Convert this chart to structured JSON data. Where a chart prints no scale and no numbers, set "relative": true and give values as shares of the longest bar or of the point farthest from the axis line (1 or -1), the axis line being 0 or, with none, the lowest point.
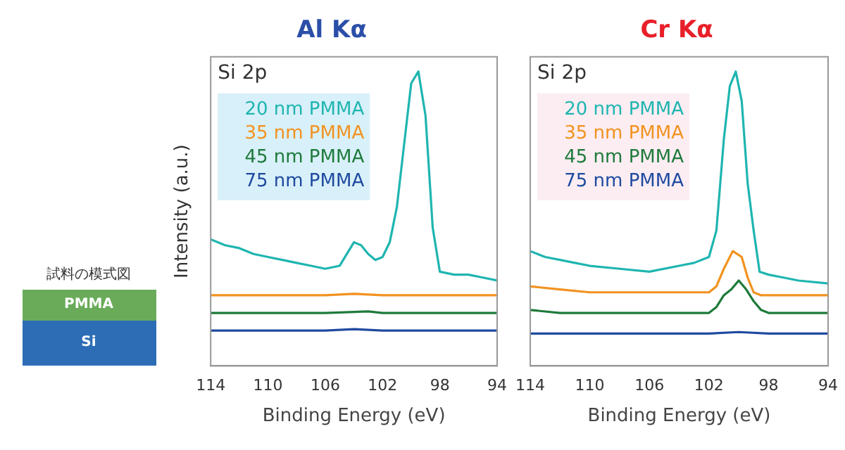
{
  "chart_data": [
    {
      "type": "other",
      "title": "試料の模式図",
      "annotations": [
        "PMMA",
        "Si"
      ]
    },
    {
      "type": "line",
      "title": "Al Kα",
      "xlabel": "Binding Energy (eV)",
      "ylabel": "Intensity (a.u.)",
      "relative": true,
      "xlim": [
        114,
        94
      ],
      "xticks": [
        114,
        110,
        106,
        102,
        98,
        94
      ],
      "legend": "top left",
      "grid": false,
      "marker": "none",
      "annotations": [
        "Si 2p"
      ],
      "series": [
        {
          "name": "20 nm PMMA",
          "color": "#1fb5b0",
          "x": [
            114,
            113,
            112,
            111,
            110,
            109,
            108,
            107,
            106,
            105,
            104.5,
            104,
            103.5,
            103,
            102.5,
            102,
            101.5,
            101,
            100.5,
            100,
            99.5,
            99,
            98.5,
            98,
            97,
            96,
            95,
            94
          ],
          "values": [
            0.43,
            0.41,
            0.4,
            0.38,
            0.37,
            0.36,
            0.35,
            0.34,
            0.33,
            0.34,
            0.38,
            0.42,
            0.41,
            0.38,
            0.36,
            0.37,
            0.42,
            0.54,
            0.75,
            0.96,
            1,
            0.85,
            0.47,
            0.32,
            0.31,
            0.31,
            0.3,
            0.29
          ]
        },
        {
          "name": "35 nm PMMA",
          "color": "#f2921f",
          "x": [
            114,
            110,
            106,
            104,
            102,
            98,
            94
          ],
          "values": [
            0.24,
            0.24,
            0.24,
            0.245,
            0.24,
            0.24,
            0.24
          ]
        },
        {
          "name": "45 nm PMMA",
          "color": "#1e7a3a",
          "x": [
            114,
            110,
            106,
            103,
            102,
            98,
            94
          ],
          "values": [
            0.18,
            0.18,
            0.18,
            0.185,
            0.18,
            0.18,
            0.18
          ]
        },
        {
          "name": "75 nm PMMA",
          "color": "#1f4aa0",
          "x": [
            114,
            110,
            106,
            104,
            102,
            98,
            94
          ],
          "values": [
            0.12,
            0.12,
            0.12,
            0.125,
            0.12,
            0.12,
            0.12
          ]
        }
      ]
    },
    {
      "type": "line",
      "title": "Cr Kα",
      "xlabel": "Binding Energy (eV)",
      "relative": true,
      "xlim": [
        114,
        94
      ],
      "xticks": [
        114,
        110,
        106,
        102,
        98,
        94
      ],
      "legend": "top left",
      "grid": false,
      "marker": "none",
      "annotations": [
        "Si 2p"
      ],
      "series": [
        {
          "name": "20 nm PMMA",
          "color": "#1fb5b0",
          "x": [
            114,
            113,
            112,
            111,
            110,
            108,
            106,
            104,
            103,
            102,
            101.5,
            101,
            100.6,
            100.2,
            99.8,
            99.4,
            99,
            98.6,
            98,
            97,
            96,
            94
          ],
          "values": [
            0.39,
            0.37,
            0.36,
            0.35,
            0.34,
            0.33,
            0.32,
            0.34,
            0.35,
            0.37,
            0.46,
            0.77,
            0.95,
            1,
            0.9,
            0.62,
            0.46,
            0.32,
            0.31,
            0.3,
            0.29,
            0.28
          ]
        },
        {
          "name": "35 nm PMMA",
          "color": "#f2921f",
          "x": [
            114,
            112,
            110,
            106,
            102,
            101.5,
            101,
            100.4,
            99.8,
            99.4,
            99,
            98.5,
            98,
            96,
            94
          ],
          "values": [
            0.27,
            0.26,
            0.25,
            0.25,
            0.25,
            0.27,
            0.33,
            0.39,
            0.37,
            0.3,
            0.25,
            0.24,
            0.24,
            0.24,
            0.24
          ]
        },
        {
          "name": "45 nm PMMA",
          "color": "#1e7a3a",
          "x": [
            114,
            112,
            110,
            106,
            102,
            101.5,
            101,
            100.5,
            100,
            99.5,
            99,
            98.5,
            98,
            96,
            94
          ],
          "values": [
            0.19,
            0.18,
            0.18,
            0.18,
            0.18,
            0.2,
            0.24,
            0.26,
            0.29,
            0.26,
            0.22,
            0.19,
            0.18,
            0.18,
            0.18
          ]
        },
        {
          "name": "75 nm PMMA",
          "color": "#1f4aa0",
          "x": [
            114,
            110,
            106,
            102,
            100,
            98,
            94
          ],
          "values": [
            0.11,
            0.11,
            0.11,
            0.11,
            0.115,
            0.11,
            0.11
          ]
        }
      ]
    }
  ]
}
